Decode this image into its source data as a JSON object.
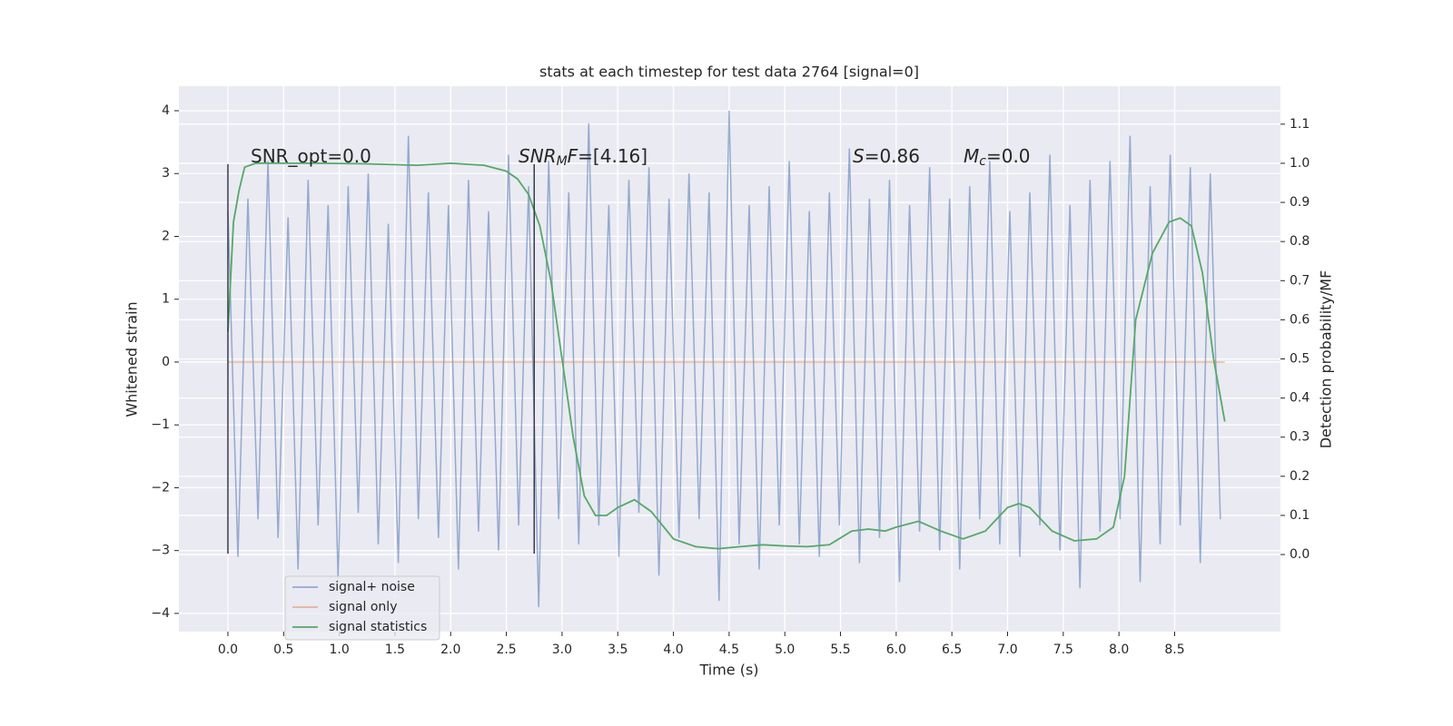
{
  "chart_data": {
    "type": "line",
    "title": "stats at each timestep for test data 2764 [signal=0]",
    "x_label": "Time (s)",
    "y_label": "Whitened strain",
    "y2_label": "Detection probability/MF",
    "xlim": [
      -0.44,
      9.45
    ],
    "ylim": [
      -4.29,
      4.39
    ],
    "y2lim": [
      -0.197,
      1.197
    ],
    "xticks": [
      {
        "value": 0,
        "label": "0.0"
      },
      0.5,
      {
        "value": 1,
        "label": "1.0"
      },
      1.5,
      {
        "value": 2,
        "label": "2.0"
      },
      2.5,
      {
        "value": 3,
        "label": "3.0"
      },
      3.5,
      {
        "value": 4,
        "label": "4.0"
      },
      4.5,
      {
        "value": 5,
        "label": "5.0"
      },
      5.5,
      {
        "value": 6,
        "label": "6.0"
      },
      6.5,
      {
        "value": 7,
        "label": "7.0"
      },
      7.5,
      {
        "value": 8,
        "label": "8.0"
      },
      8.5
    ],
    "yticks": [
      {
        "value": -4,
        "label": "−4"
      },
      {
        "value": -3,
        "label": "−3"
      },
      {
        "value": -2,
        "label": "−2"
      },
      {
        "value": -1,
        "label": "−1"
      },
      0,
      1,
      2,
      3,
      4
    ],
    "y2ticks": [
      {
        "value": 0,
        "label": "0.0"
      },
      0.1,
      0.2,
      0.3,
      0.4,
      0.5,
      0.6,
      0.7,
      0.8,
      0.9,
      {
        "value": 1,
        "label": "1.0"
      },
      1.1
    ],
    "grid": true,
    "legend": "lower left",
    "series": [
      {
        "name": "signal+ noise",
        "color": "#4c72b0",
        "axis": "y",
        "x": [
          0,
          0.09,
          0.18,
          0.27,
          0.36,
          0.45,
          0.54,
          0.63,
          0.72,
          0.81,
          0.9,
          0.99,
          1.08,
          1.17,
          1.26,
          1.35,
          1.44,
          1.53,
          1.62,
          1.71,
          1.8,
          1.89,
          1.98,
          2.07,
          2.16,
          2.25,
          2.34,
          2.43,
          2.52,
          2.61,
          2.7,
          2.79,
          2.88,
          2.97,
          3.06,
          3.15,
          3.24,
          3.33,
          3.42,
          3.51,
          3.6,
          3.69,
          3.78,
          3.87,
          3.96,
          4.05,
          4.14,
          4.23,
          4.32,
          4.41,
          4.5,
          4.59,
          4.68,
          4.77,
          4.86,
          4.95,
          5.04,
          5.13,
          5.22,
          5.31,
          5.4,
          5.49,
          5.58,
          5.67,
          5.76,
          5.85,
          5.94,
          6.03,
          6.12,
          6.21,
          6.3,
          6.39,
          6.48,
          6.57,
          6.66,
          6.75,
          6.84,
          6.93,
          7.02,
          7.11,
          7.2,
          7.29,
          7.38,
          7.47,
          7.56,
          7.65,
          7.74,
          7.83,
          7.92,
          8.01,
          8.1,
          8.19,
          8.28,
          8.37,
          8.46,
          8.55,
          8.64,
          8.73,
          8.82,
          8.91
        ],
        "values": [
          2.4,
          -3.1,
          2.6,
          -2.5,
          3.2,
          -2.8,
          2.3,
          -3.3,
          2.9,
          -2.6,
          2.5,
          -3.5,
          2.8,
          -2.4,
          3.0,
          -2.9,
          2.2,
          -3.2,
          3.6,
          -2.5,
          2.7,
          -2.8,
          2.5,
          -3.3,
          2.9,
          -2.7,
          2.4,
          -3.0,
          3.3,
          -2.6,
          2.8,
          -3.9,
          3.2,
          -2.5,
          2.7,
          -2.9,
          3.8,
          -2.6,
          2.5,
          -3.1,
          2.9,
          -2.4,
          3.1,
          -3.4,
          2.6,
          -2.8,
          3.0,
          -2.5,
          2.7,
          -3.8,
          4.0,
          -2.9,
          2.5,
          -3.3,
          2.8,
          -2.6,
          3.2,
          -2.9,
          2.4,
          -3.1,
          2.7,
          -2.6,
          3.4,
          -3.2,
          2.6,
          -2.8,
          2.9,
          -3.5,
          2.5,
          -2.7,
          3.1,
          -3.0,
          2.6,
          -3.3,
          2.8,
          -2.5,
          3.2,
          -2.9,
          2.4,
          -3.1,
          2.7,
          -2.6,
          3.3,
          -3.0,
          2.5,
          -3.6,
          2.9,
          -2.7,
          3.2,
          -2.5,
          3.6,
          -3.5,
          2.8,
          -2.9,
          3.3,
          -2.6,
          3.1,
          -3.2,
          3.0,
          -2.5
        ]
      },
      {
        "name": "signal only",
        "color": "#dd8452",
        "axis": "y",
        "x": [
          0,
          8.95
        ],
        "values": [
          0,
          0
        ]
      },
      {
        "name": "signal statistics",
        "color": "#55a868",
        "axis": "y2",
        "x": [
          0,
          0.05,
          0.1,
          0.15,
          0.25,
          0.4,
          0.8,
          1.2,
          1.7,
          2.0,
          2.3,
          2.5,
          2.6,
          2.7,
          2.8,
          2.9,
          3.0,
          3.1,
          3.2,
          3.3,
          3.4,
          3.5,
          3.65,
          3.8,
          4.0,
          4.2,
          4.4,
          4.6,
          4.8,
          5.0,
          5.2,
          5.4,
          5.6,
          5.75,
          5.9,
          6.0,
          6.2,
          6.4,
          6.6,
          6.8,
          7.0,
          7.1,
          7.2,
          7.4,
          7.6,
          7.8,
          7.95,
          8.05,
          8.15,
          8.3,
          8.45,
          8.55,
          8.65,
          8.75,
          8.85,
          8.95
        ],
        "values": [
          0.57,
          0.85,
          0.93,
          0.99,
          1.0,
          1.0,
          1.0,
          0.999,
          0.995,
          1.0,
          0.995,
          0.98,
          0.96,
          0.92,
          0.84,
          0.7,
          0.5,
          0.3,
          0.15,
          0.1,
          0.1,
          0.12,
          0.14,
          0.11,
          0.04,
          0.02,
          0.015,
          0.02,
          0.025,
          0.022,
          0.02,
          0.025,
          0.06,
          0.065,
          0.06,
          0.07,
          0.085,
          0.06,
          0.04,
          0.06,
          0.12,
          0.13,
          0.12,
          0.06,
          0.035,
          0.04,
          0.07,
          0.2,
          0.6,
          0.77,
          0.85,
          0.86,
          0.84,
          0.72,
          0.5,
          0.34
        ]
      }
    ],
    "vlines": {
      "x": [
        0,
        2.75
      ],
      "ymin": -3.05,
      "ymax": 3.15,
      "color": "#3a3a4a"
    },
    "annotations": [
      {
        "parts": [
          {
            "text": "SNR_opt=0.0"
          }
        ]
      },
      {
        "parts": [
          {
            "text": "SNR",
            "italic": true
          },
          {
            "text": "M",
            "italic": true,
            "sub": true
          },
          {
            "text": "F",
            "italic": true
          },
          {
            "text": "=[4.16]"
          }
        ]
      },
      {
        "parts": [
          {
            "text": "S",
            "italic": true
          },
          {
            "text": "=0.86"
          }
        ]
      },
      {
        "parts": [
          {
            "text": "M",
            "italic": true
          },
          {
            "text": "c",
            "italic": true,
            "sub": true
          },
          {
            "text": "=0.0"
          }
        ]
      }
    ]
  }
}
